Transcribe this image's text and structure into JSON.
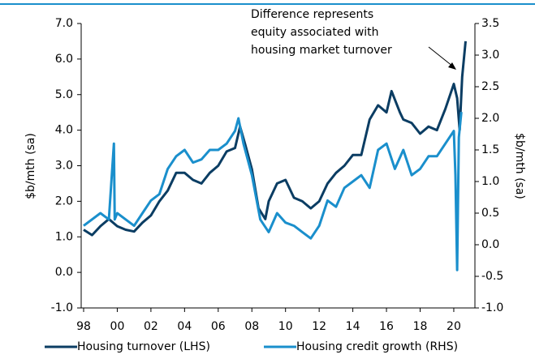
{
  "chart_data": {
    "type": "line",
    "annotation": [
      "Difference represents",
      "equity associated with",
      "housing market turnover"
    ],
    "ylabel": "$b/mth (sa)",
    "y2label": "$b/mth (sa)",
    "xlim": [
      1998,
      2020.9
    ],
    "xticks": [
      {
        "value": 1998,
        "label": "98"
      },
      {
        "value": 2000,
        "label": "00"
      },
      {
        "value": 2002,
        "label": "02"
      },
      {
        "value": 2004,
        "label": "04"
      },
      {
        "value": 2006,
        "label": "06"
      },
      {
        "value": 2008,
        "label": "08"
      },
      {
        "value": 2010,
        "label": "10"
      },
      {
        "value": 2012,
        "label": "12"
      },
      {
        "value": 2014,
        "label": "14"
      },
      {
        "value": 2016,
        "label": "16"
      },
      {
        "value": 2018,
        "label": "18"
      },
      {
        "value": 2020,
        "label": "20"
      }
    ],
    "ylim": [
      -1,
      7
    ],
    "yticks": [
      {
        "value": -1,
        "label": "-1.0"
      },
      {
        "value": 0,
        "label": "0.0"
      },
      {
        "value": 1,
        "label": "1.0"
      },
      {
        "value": 2,
        "label": "2.0"
      },
      {
        "value": 3,
        "label": "3.0"
      },
      {
        "value": 4,
        "label": "4.0"
      },
      {
        "value": 5,
        "label": "5.0"
      },
      {
        "value": 6,
        "label": "6.0"
      },
      {
        "value": 7,
        "label": "7.0"
      }
    ],
    "y2lim": [
      -1,
      3.5
    ],
    "y2ticks": [
      {
        "value": -1,
        "label": "-1.0"
      },
      -0.5,
      {
        "value": 0,
        "label": "0.0"
      },
      0.5,
      {
        "value": 1,
        "label": "1.0"
      },
      1.5,
      {
        "value": 2,
        "label": "2.0"
      },
      2.5,
      {
        "value": 3,
        "label": "3.0"
      },
      3.5
    ],
    "series": [
      {
        "name": "Housing turnover (LHS)",
        "color": "#0b3d63",
        "x": [
          1998,
          1998.5,
          1999,
          1999.5,
          2000,
          2000.5,
          2001,
          2001.5,
          2002,
          2002.5,
          2003,
          2003.5,
          2004,
          2004.5,
          2005,
          2005.5,
          2006,
          2006.5,
          2007,
          2007.3,
          2007.6,
          2008,
          2008.4,
          2008.8,
          2009,
          2009.5,
          2010,
          2010.5,
          2011,
          2011.5,
          2012,
          2012.5,
          2013,
          2013.5,
          2014,
          2014.5,
          2015,
          2015.5,
          2016,
          2016.3,
          2016.8,
          2017,
          2017.5,
          2018,
          2018.5,
          2019,
          2019.5,
          2020,
          2020.2,
          2020.35,
          2020.5,
          2020.7
        ],
        "values": [
          1.2,
          1.05,
          1.3,
          1.5,
          1.3,
          1.2,
          1.15,
          1.4,
          1.6,
          2.0,
          2.3,
          2.8,
          2.8,
          2.6,
          2.5,
          2.8,
          3.0,
          3.4,
          3.5,
          4.1,
          3.6,
          2.9,
          1.8,
          1.5,
          2.0,
          2.5,
          2.6,
          2.1,
          2.0,
          1.8,
          2.0,
          2.5,
          2.8,
          3.0,
          3.3,
          3.3,
          4.3,
          4.7,
          4.5,
          5.1,
          4.5,
          4.3,
          4.2,
          3.9,
          4.1,
          4.0,
          4.6,
          5.3,
          4.9,
          4.0,
          5.5,
          6.5
        ]
      },
      {
        "name": "Housing credit growth (RHS)",
        "color": "#1a8fcc",
        "axis": "y2",
        "x": [
          1998,
          1999,
          1999.5,
          1999.8,
          1999.85,
          2000,
          2000.5,
          2001,
          2001.5,
          2002,
          2002.5,
          2003,
          2003.5,
          2004,
          2004.5,
          2005,
          2005.5,
          2006,
          2006.5,
          2007,
          2007.2,
          2007.5,
          2008,
          2008.5,
          2009,
          2009.5,
          2010,
          2010.5,
          2011,
          2011.5,
          2012,
          2012.5,
          2013,
          2013.5,
          2014,
          2014.5,
          2015,
          2015.5,
          2016,
          2016.5,
          2017,
          2017.5,
          2018,
          2018.5,
          2019,
          2019.5,
          2020,
          2020.1,
          2020.2,
          2020.3,
          2020.45
        ],
        "values": [
          0.3,
          0.5,
          0.4,
          1.6,
          0.4,
          0.5,
          0.4,
          0.3,
          0.5,
          0.7,
          0.8,
          1.2,
          1.4,
          1.5,
          1.3,
          1.35,
          1.5,
          1.5,
          1.6,
          1.8,
          2.0,
          1.6,
          1.1,
          0.4,
          0.2,
          0.5,
          0.35,
          0.3,
          0.2,
          0.1,
          0.3,
          0.7,
          0.6,
          0.9,
          1.0,
          1.1,
          0.9,
          1.5,
          1.6,
          1.2,
          1.5,
          1.1,
          1.2,
          1.4,
          1.4,
          1.6,
          1.8,
          1.1,
          -0.4,
          1.7,
          2.1
        ]
      }
    ]
  }
}
